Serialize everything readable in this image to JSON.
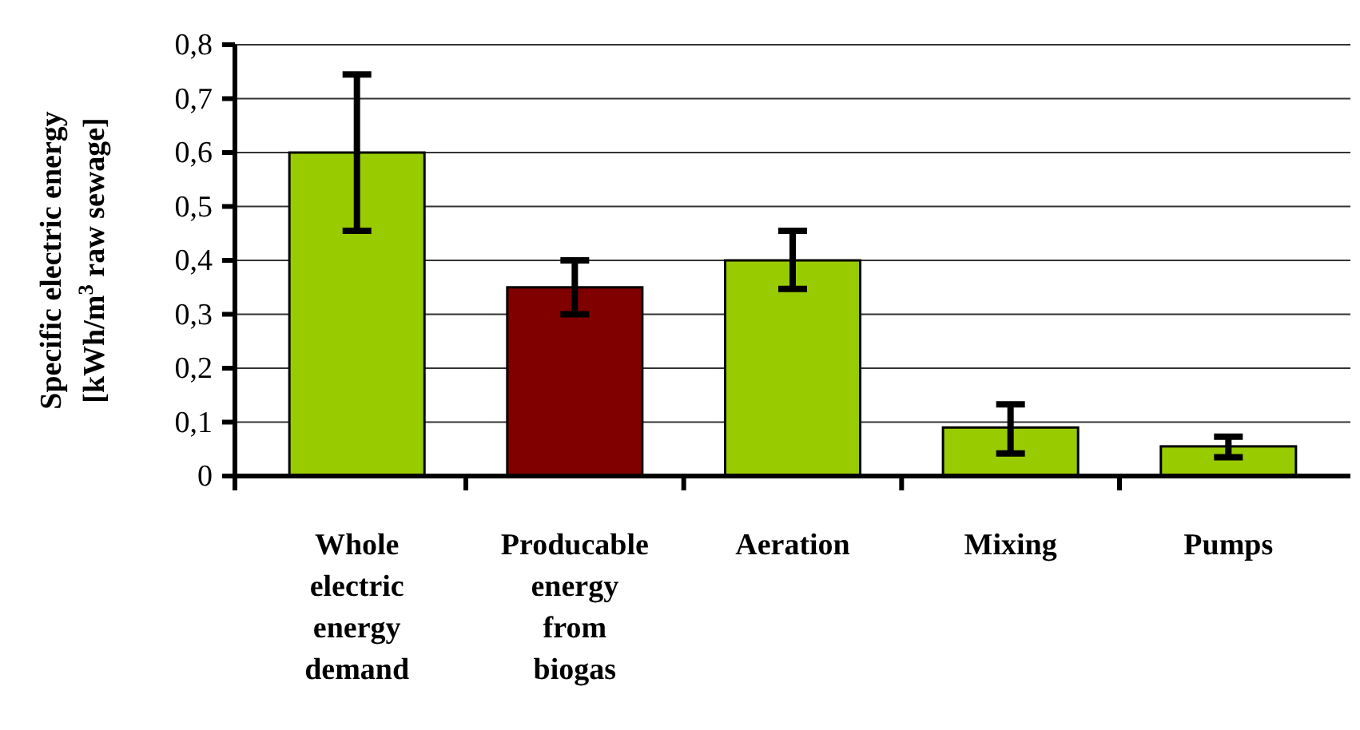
{
  "chart_data": {
    "type": "bar",
    "ylabel": "Specific electric energy [kWh/m$^{3}$ raw sewage]",
    "categories": [
      "Whole electric energy demand",
      "Producable energy from biogas",
      "Aeration",
      "Mixing",
      "Pumps"
    ],
    "values": [
      0.6,
      0.35,
      0.4,
      0.09,
      0.055
    ],
    "colors": [
      "#99cc00",
      "#800000",
      "#99cc00",
      "#99cc00",
      "#99cc00"
    ],
    "errors": [
      [
        0.455,
        0.745
      ],
      [
        0.3,
        0.4
      ],
      [
        0.347,
        0.455
      ],
      [
        0.042,
        0.133
      ],
      [
        0.035,
        0.073
      ]
    ],
    "ylim": [
      0,
      0.8
    ],
    "yticks": [
      0,
      {
        "value": 0.1,
        "label": "0,1"
      },
      {
        "value": 0.2,
        "label": "0,2"
      },
      {
        "value": 0.3,
        "label": "0,3"
      },
      {
        "value": 0.4,
        "label": "0,4"
      },
      {
        "value": 0.5,
        "label": "0,5"
      },
      {
        "value": 0.6,
        "label": "0,6"
      },
      {
        "value": 0.7,
        "label": "0,7"
      },
      {
        "value": 0.8,
        "label": "0,8"
      }
    ],
    "grid": "y"
  }
}
